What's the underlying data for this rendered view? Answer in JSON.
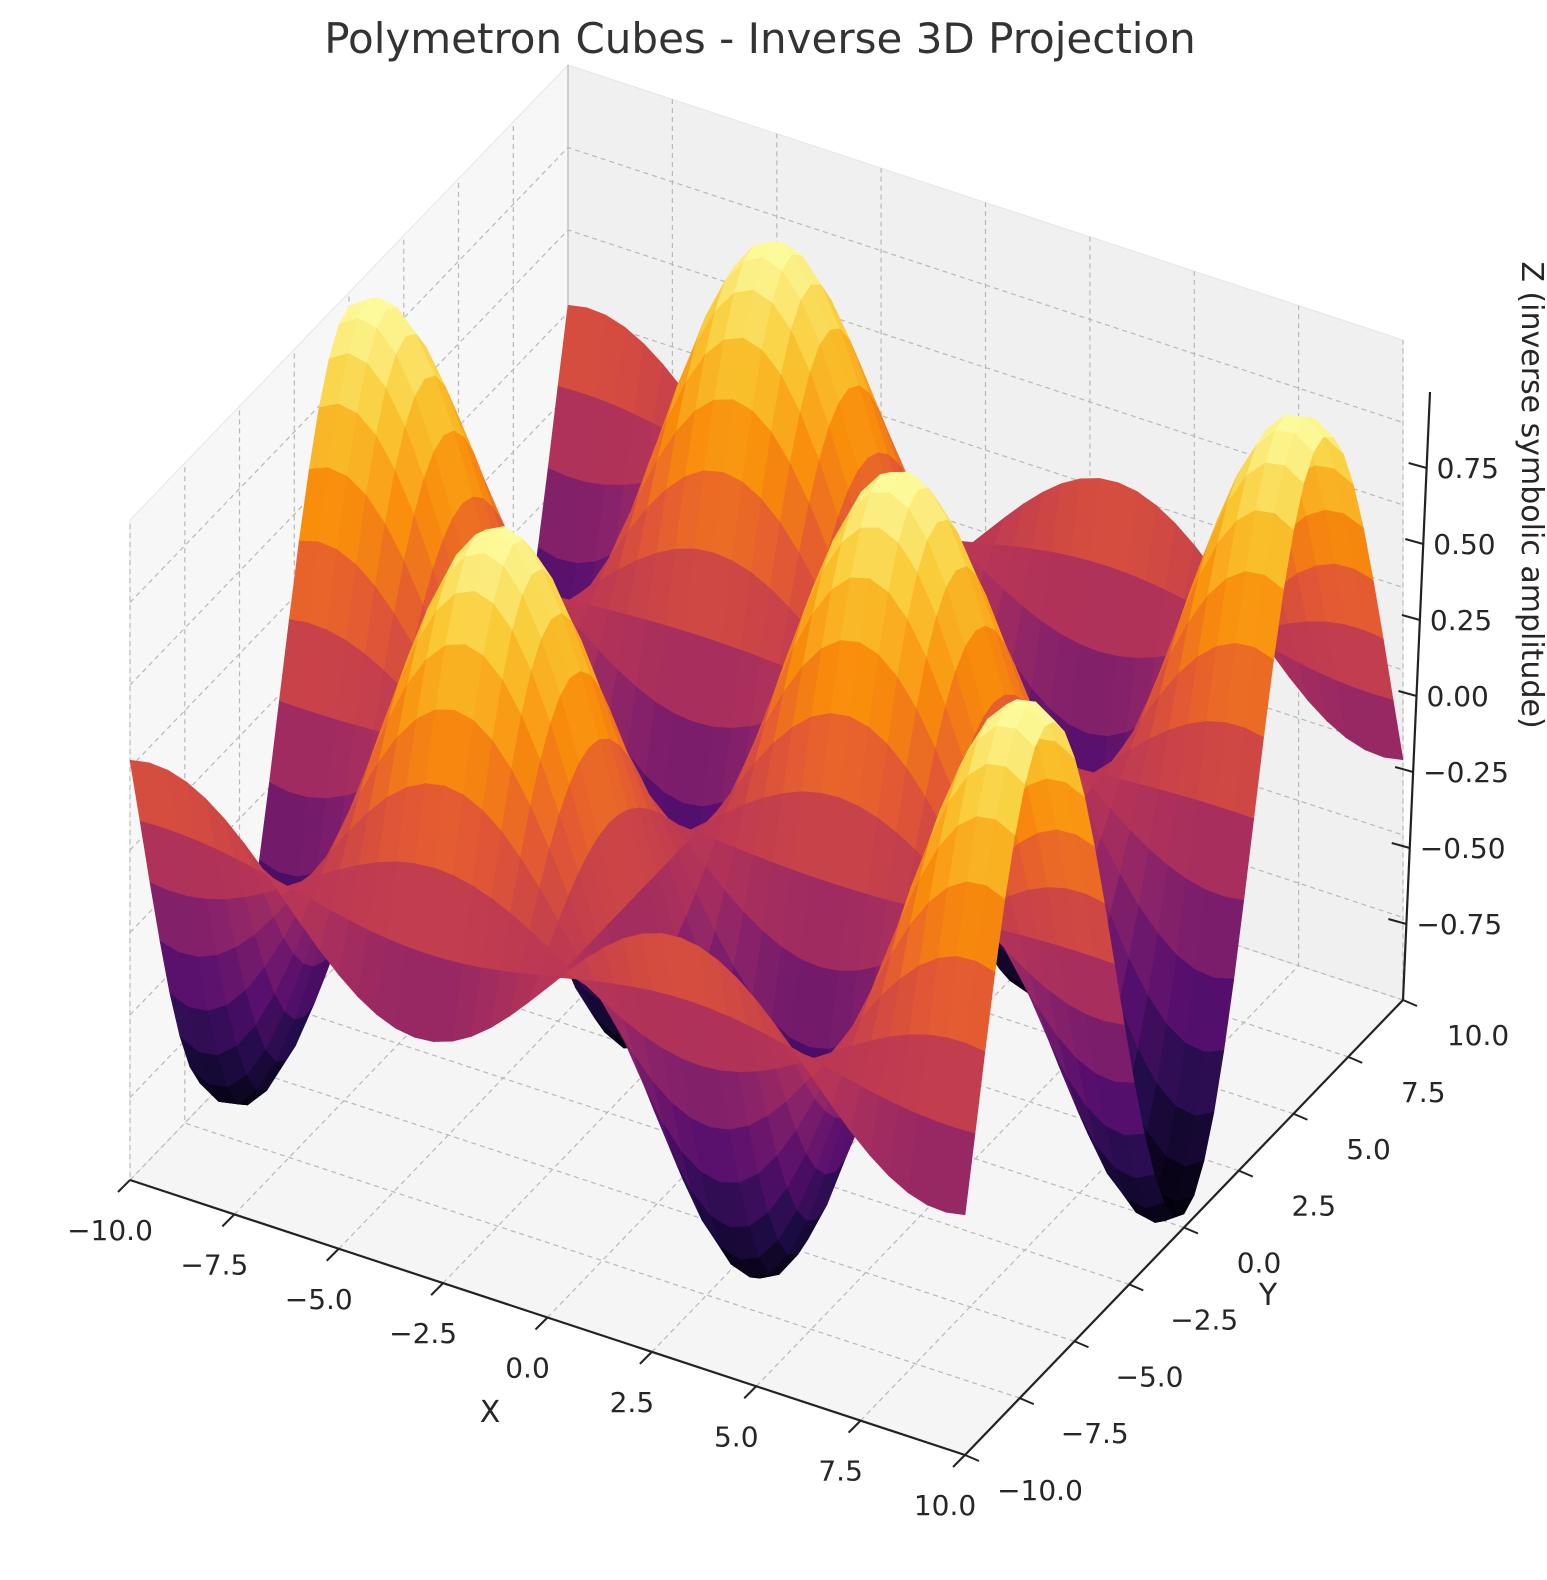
{
  "chart_data": {
    "type": "surface3d",
    "title": "Polymetron Cubes - Inverse 3D Projection",
    "xlabel": "X",
    "ylabel": "Y",
    "zlabel": "Z (inverse symbolic amplitude)",
    "xlim": [
      -10,
      10
    ],
    "ylim": [
      -10,
      10
    ],
    "zlim": [
      -1,
      1
    ],
    "x_ticks": [
      "−10.0",
      "−7.5",
      "−5.0",
      "−2.5",
      "0.0",
      "2.5",
      "5.0",
      "7.5",
      "10.0"
    ],
    "y_ticks": [
      "−10.0",
      "−7.5",
      "−5.0",
      "−2.5",
      "0.0",
      "2.5",
      "5.0",
      "7.5",
      "10.0"
    ],
    "z_ticks": [
      "−0.75",
      "−0.50",
      "−0.25",
      "0.00",
      "0.25",
      "0.50",
      "0.75"
    ],
    "x_tick_values": [
      -10,
      -7.5,
      -5,
      -2.5,
      0,
      2.5,
      5,
      7.5,
      10
    ],
    "y_tick_values": [
      -10,
      -7.5,
      -5,
      -2.5,
      0,
      2.5,
      5,
      7.5,
      10
    ],
    "z_tick_values": [
      -0.75,
      -0.5,
      -0.25,
      0,
      0.25,
      0.5,
      0.75
    ],
    "surface": "z = sin(0.5x)·cos(0.5y)",
    "colormap": "inferno",
    "grid": true,
    "pane_color": "#f2f2f2"
  }
}
